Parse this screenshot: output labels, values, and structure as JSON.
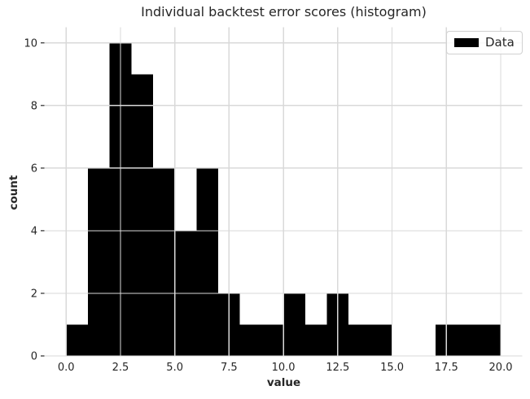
{
  "chart_data": {
    "type": "bar",
    "subtype": "histogram",
    "title": "Individual backtest error scores (histogram)",
    "xlabel": "value",
    "ylabel": "count",
    "legend_label": "Data",
    "legend_position": "upper right",
    "bin_edges": [
      0,
      1,
      2,
      3,
      4,
      5,
      6,
      7,
      8,
      9,
      10,
      11,
      12,
      13,
      14,
      15,
      16,
      17,
      18,
      19,
      20
    ],
    "counts": [
      1,
      6,
      10,
      9,
      6,
      4,
      6,
      2,
      1,
      1,
      2,
      1,
      2,
      1,
      1,
      0,
      0,
      1,
      1,
      1
    ],
    "x_ticks": [
      0,
      2.5,
      5,
      7.5,
      10,
      12.5,
      15,
      17.5,
      20
    ],
    "x_tick_labels": [
      "0.0",
      "2.5",
      "5.0",
      "7.5",
      "10.0",
      "12.5",
      "15.0",
      "17.5",
      "20.0"
    ],
    "y_ticks": [
      0,
      2,
      4,
      6,
      8,
      10
    ],
    "y_tick_labels": [
      "0",
      "2",
      "4",
      "6",
      "8",
      "10"
    ],
    "xlim": [
      -1,
      21
    ],
    "ylim": [
      0,
      10.5
    ],
    "grid": true,
    "grid_over_bars": true,
    "bar_color": "#000000",
    "grid_color": "#d9d9d9",
    "tick_color": "#262626",
    "text_color": "#262626",
    "background_color": "#ffffff"
  }
}
